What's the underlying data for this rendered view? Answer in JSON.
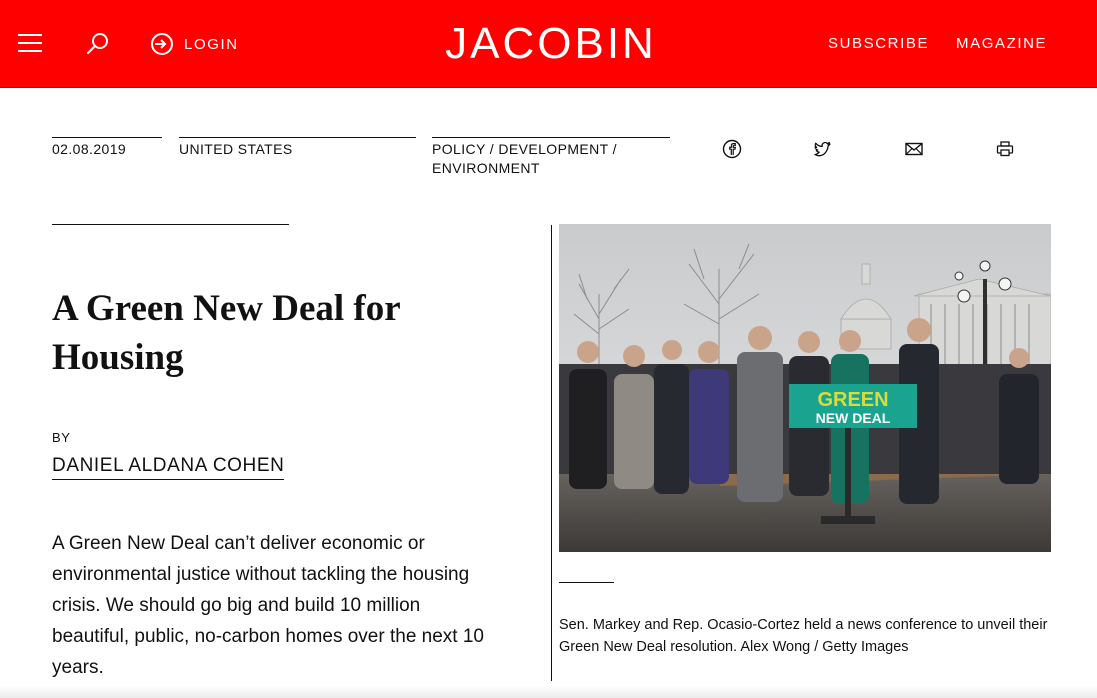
{
  "header": {
    "logo": "JACOBIN",
    "login_label": "LOGIN",
    "subscribe_label": "SUBSCRIBE",
    "magazine_label": "MAGAZINE",
    "brand_color": "#ff0000"
  },
  "meta": {
    "date": "02.08.2019",
    "region": "UNITED STATES",
    "topics": [
      "POLICY",
      "DEVELOPMENT",
      "ENVIRONMENT"
    ],
    "topic_separator": " / "
  },
  "share": {
    "icons": [
      "facebook-icon",
      "twitter-icon",
      "mail-icon",
      "print-icon"
    ]
  },
  "article": {
    "title_line1": "A Green New Deal for",
    "title_line2": "Housing",
    "by_label": "BY",
    "author": "DANIEL ALDANA COHEN",
    "dek": "A Green New Deal can’t deliver economic or environmental justice without tackling the housing crisis. We should go big and build 10 million beautiful, public, no-carbon homes over the next 10 years."
  },
  "photo": {
    "sign_line1": "GREEN",
    "sign_line2": "NEW DEAL",
    "caption": "Sen. Markey and Rep. Ocasio-Cortez held a news conference to unveil their Green New Deal resolution. Alex Wong / Getty Images"
  }
}
